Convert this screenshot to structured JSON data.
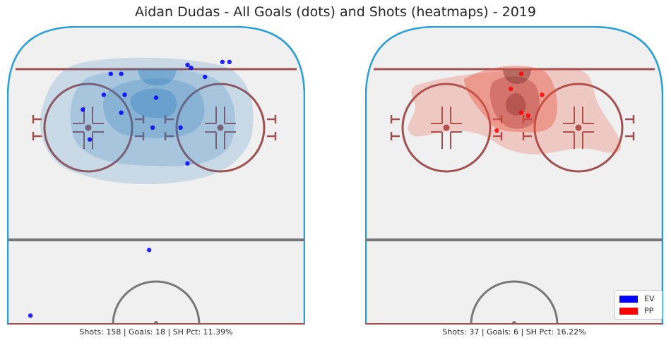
{
  "title": "Aidan Dudas - All Goals (dots) and Shots (heatmaps) - 2019",
  "colors": {
    "ev": "#0000ff",
    "pp": "#ff0000",
    "ev_heat": "#2f7fc0",
    "pp_heat": "#e8553f",
    "boards": "#2a9fd6",
    "red_line": "#a05050",
    "blue_line": "#777777",
    "ice": "#f0f0f0"
  },
  "legend": [
    {
      "label": "EV",
      "color": "#0000ff"
    },
    {
      "label": "PP",
      "color": "#ff0000"
    }
  ],
  "chart_data": [
    {
      "type": "scatter",
      "title": "",
      "subtitle": "Shots: 158 | Goals: 18 | SH Pct: 11.39%",
      "xlim": [
        -42.5,
        42.5
      ],
      "ylim": [
        0,
        100
      ],
      "series": [
        {
          "name": "EV",
          "points": [
            [
              -13,
              84
            ],
            [
              -10,
              84
            ],
            [
              9,
              87
            ],
            [
              10,
              86
            ],
            [
              21,
              88
            ],
            [
              19,
              88
            ],
            [
              14,
              83
            ],
            [
              -15,
              77
            ],
            [
              -9,
              77
            ],
            [
              0,
              76
            ],
            [
              -21,
              72
            ],
            [
              -10,
              71
            ],
            [
              -19,
              62
            ],
            [
              -1,
              66
            ],
            [
              7,
              66
            ],
            [
              9,
              54
            ],
            [
              -2,
              25
            ],
            [
              -36,
              3
            ]
          ]
        }
      ]
    },
    {
      "type": "scatter",
      "title": "",
      "subtitle": "Shots: 37 | Goals: 6 | SH Pct: 16.22%",
      "xlim": [
        -42.5,
        42.5
      ],
      "ylim": [
        0,
        100
      ],
      "series": [
        {
          "name": "PP",
          "points": [
            [
              2,
              84
            ],
            [
              -1,
              79
            ],
            [
              8,
              77
            ],
            [
              2,
              71
            ],
            [
              4,
              70
            ],
            [
              -5,
              65
            ]
          ]
        }
      ]
    }
  ]
}
